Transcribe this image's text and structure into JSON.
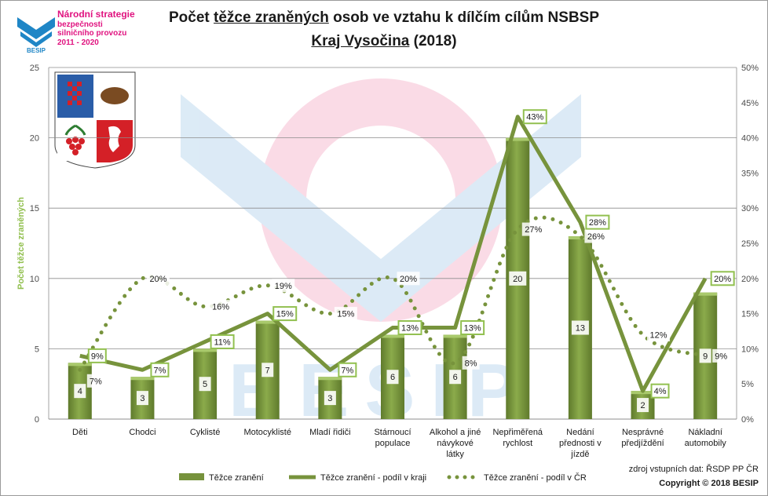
{
  "branding": {
    "org_line1": "Národní strategie",
    "org_line2": "bezpečnosti",
    "org_line3": "silničního provozu",
    "org_years": "2011 - 2020",
    "logo_word": "BESIP",
    "brand_color": "#e0127f",
    "logo_blue": "#1f86c6"
  },
  "title": {
    "line1_a": "Počet ",
    "line1_u": "těžce zraněných",
    "line1_b": " osob ve vztahu k dílčím cílům NSBSP",
    "line2_u": "Kraj Vysočina",
    "line2_b": " (2018)"
  },
  "footer": {
    "source": "zdroj vstupních dat: ŘSDP PP ČR",
    "copyright": "Copyright © 2018  BESIP"
  },
  "chart_data": {
    "type": "bar",
    "ylabel": "Počet těžce zraněných",
    "ylim": [
      0,
      25
    ],
    "yticks": [
      0,
      5,
      10,
      15,
      20,
      25
    ],
    "y2lim": [
      0,
      50
    ],
    "y2ticks": [
      "0%",
      "5%",
      "10%",
      "15%",
      "20%",
      "25%",
      "30%",
      "35%",
      "40%",
      "45%",
      "50%"
    ],
    "grid": true,
    "legend_position": "bottom",
    "categories": [
      [
        "Děti"
      ],
      [
        "Chodci"
      ],
      [
        "Cyklisté"
      ],
      [
        "Motocyklisté"
      ],
      [
        "Mladí řidiči"
      ],
      [
        "Stárnoucí",
        "populace"
      ],
      [
        "Alkohol a jiné",
        "návykové",
        "látky"
      ],
      [
        "Nepřiměřená",
        "rychlost"
      ],
      [
        "Nedání",
        "přednosti v",
        "jízdě"
      ],
      [
        "Nesprávné",
        "předjíždění"
      ],
      [
        "Nákladní",
        "automobily"
      ]
    ],
    "series": [
      {
        "name": "Těžce zranění",
        "type": "bar",
        "axis": "left",
        "color": "#76923c",
        "values": [
          4,
          3,
          5,
          7,
          3,
          6,
          6,
          20,
          13,
          2,
          9
        ]
      },
      {
        "name": "Těžce zranění - podíl v kraji",
        "type": "line",
        "axis": "right",
        "color": "#77933c",
        "values": [
          9,
          7,
          11,
          15,
          7,
          13,
          13,
          43,
          28,
          4,
          20
        ],
        "labels": [
          "9%",
          "7%",
          "11%",
          "15%",
          "7%",
          "13%",
          "13%",
          "43%",
          "28%",
          "4%",
          "20%"
        ]
      },
      {
        "name": "Těžce zranění - podíl v ČR",
        "type": "dotted",
        "axis": "right",
        "color": "#77933c",
        "values": [
          7,
          20,
          16,
          19,
          15,
          20,
          8,
          27,
          26,
          12,
          9
        ],
        "labels": [
          "7%",
          "20%",
          "16%",
          "19%",
          "15%",
          "20%",
          "8%",
          "27%",
          "26%",
          "12%",
          "9%"
        ]
      }
    ]
  }
}
